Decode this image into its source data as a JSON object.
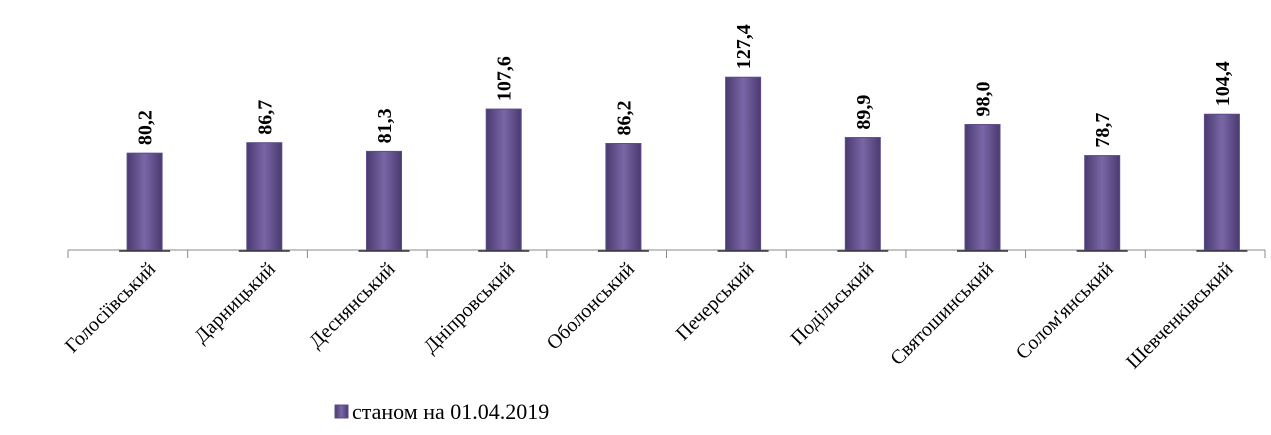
{
  "chart_data": {
    "type": "bar",
    "categories": [
      "Голосіївський",
      "Дарницький",
      "Деснянський",
      "Дніпровський",
      "Оболонський",
      "Печерський",
      "Подільський",
      "Святошинський",
      "Солом'янський",
      "Шевченківський"
    ],
    "series": [
      {
        "name": "станом на 01.04.2019",
        "color": "#5f4b8b",
        "values": [
          80.2,
          86.7,
          81.3,
          107.6,
          86.2,
          127.4,
          89.9,
          98.0,
          78.7,
          104.4
        ],
        "value_labels": [
          "80,2",
          "86,7",
          "81,3",
          "107,6",
          "86,2",
          "127,4",
          "89,9",
          "98,0",
          "78,7",
          "104,4"
        ]
      }
    ],
    "ylim": [
      20,
      135
    ],
    "legend": "bottom"
  }
}
